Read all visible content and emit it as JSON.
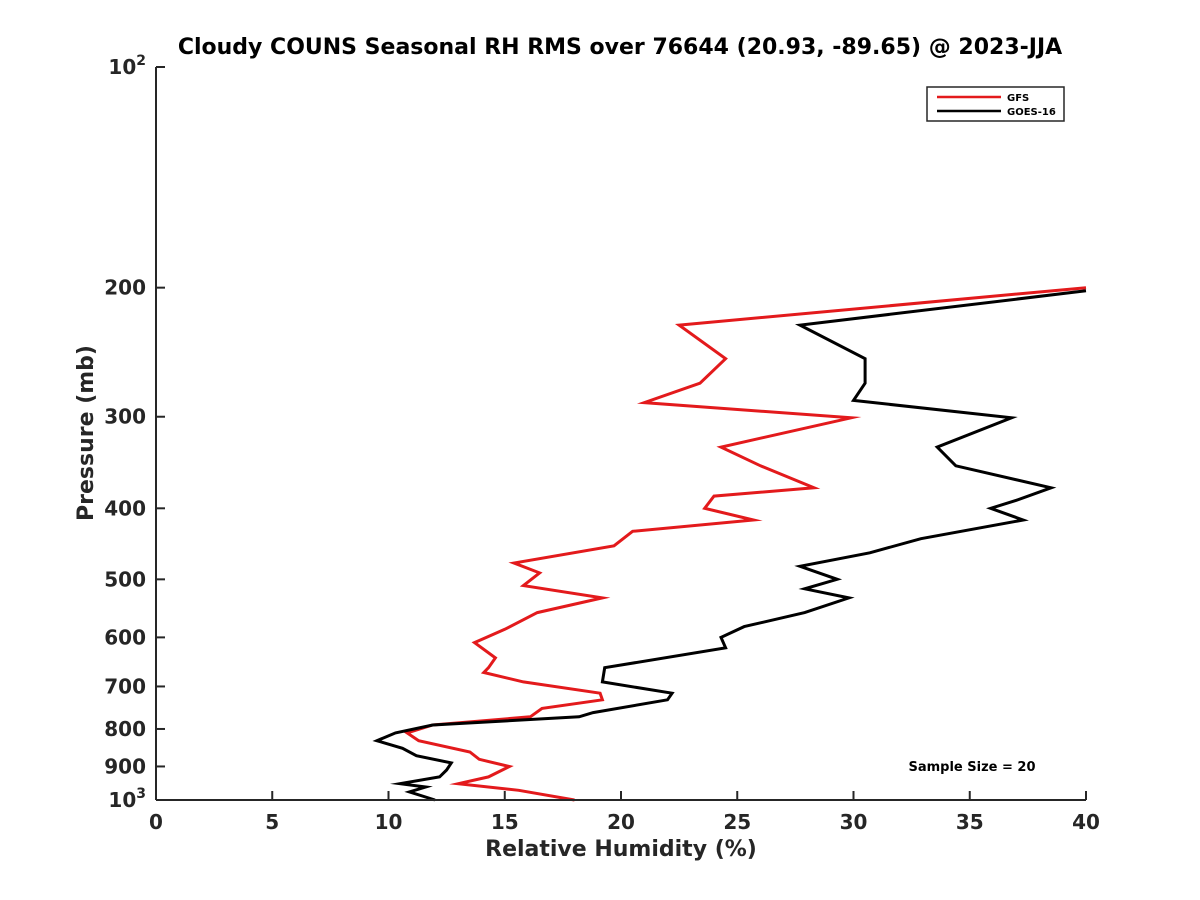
{
  "chart_data": {
    "type": "line",
    "title": "Cloudy COUNS Seasonal RH RMS over 76644 (20.93, -89.65) @ 2023-JJA",
    "xlabel": "Relative Humidity (%)",
    "ylabel": "Pressure (mb)",
    "xlim": [
      0,
      40
    ],
    "ylim": [
      100,
      1000
    ],
    "yscale": "log",
    "y_reversed": true,
    "xticks": [
      0,
      5,
      10,
      15,
      20,
      25,
      30,
      35,
      40
    ],
    "xtick_labels": [
      "0",
      "5",
      "10",
      "15",
      "20",
      "25",
      "30",
      "35",
      "40"
    ],
    "yticks": [
      100,
      200,
      300,
      400,
      500,
      600,
      700,
      800,
      900,
      1000
    ],
    "ytick_labels": [
      {
        "base": "10",
        "exp": "2"
      },
      {
        "base": "200",
        "exp": ""
      },
      {
        "base": "300",
        "exp": ""
      },
      {
        "base": "400",
        "exp": ""
      },
      {
        "base": "500",
        "exp": ""
      },
      {
        "base": "600",
        "exp": ""
      },
      {
        "base": "700",
        "exp": ""
      },
      {
        "base": "800",
        "exp": ""
      },
      {
        "base": "900",
        "exp": ""
      },
      {
        "base": "10",
        "exp": "3"
      }
    ],
    "legend": {
      "position": "top-right",
      "entries": [
        "GFS",
        "GOES-16"
      ]
    },
    "annotation": "Sample Size = 20",
    "grid": false,
    "series": [
      {
        "name": "GFS",
        "color": "#e31a1c",
        "points": [
          [
            40.0,
            200
          ],
          [
            22.5,
            225
          ],
          [
            24.5,
            250
          ],
          [
            23.4,
            270
          ],
          [
            21.0,
            287
          ],
          [
            29.9,
            301
          ],
          [
            24.3,
            330
          ],
          [
            26.0,
            350
          ],
          [
            28.3,
            375
          ],
          [
            24.0,
            385
          ],
          [
            23.6,
            400
          ],
          [
            25.7,
            415
          ],
          [
            20.5,
            430
          ],
          [
            19.7,
            450
          ],
          [
            15.4,
            475
          ],
          [
            16.5,
            490
          ],
          [
            15.8,
            510
          ],
          [
            19.2,
            530
          ],
          [
            16.4,
            555
          ],
          [
            15.0,
            585
          ],
          [
            13.7,
            610
          ],
          [
            14.6,
            640
          ],
          [
            14.3,
            660
          ],
          [
            14.1,
            670
          ],
          [
            15.8,
            690
          ],
          [
            19.1,
            715
          ],
          [
            19.2,
            730
          ],
          [
            16.6,
            750
          ],
          [
            16.1,
            770
          ],
          [
            11.9,
            790
          ],
          [
            10.8,
            810
          ],
          [
            11.3,
            830
          ],
          [
            13.5,
            860
          ],
          [
            13.9,
            880
          ],
          [
            15.2,
            900
          ],
          [
            14.3,
            930
          ],
          [
            13.0,
            950
          ],
          [
            15.6,
            970
          ],
          [
            18.0,
            1000
          ]
        ]
      },
      {
        "name": "GOES-16",
        "color": "#000000",
        "points": [
          [
            40.0,
            202
          ],
          [
            27.7,
            225
          ],
          [
            30.5,
            250
          ],
          [
            30.5,
            270
          ],
          [
            30.0,
            285
          ],
          [
            36.8,
            301
          ],
          [
            33.6,
            330
          ],
          [
            34.4,
            350
          ],
          [
            38.5,
            375
          ],
          [
            37.0,
            390
          ],
          [
            35.9,
            400
          ],
          [
            37.3,
            415
          ],
          [
            32.9,
            440
          ],
          [
            30.7,
            460
          ],
          [
            27.7,
            480
          ],
          [
            29.3,
            500
          ],
          [
            27.9,
            515
          ],
          [
            29.8,
            530
          ],
          [
            27.9,
            555
          ],
          [
            25.3,
            580
          ],
          [
            24.3,
            600
          ],
          [
            24.5,
            620
          ],
          [
            19.3,
            660
          ],
          [
            19.2,
            690
          ],
          [
            22.2,
            715
          ],
          [
            22.0,
            730
          ],
          [
            18.8,
            760
          ],
          [
            18.2,
            770
          ],
          [
            11.9,
            790
          ],
          [
            10.3,
            810
          ],
          [
            9.5,
            830
          ],
          [
            10.6,
            850
          ],
          [
            11.2,
            870
          ],
          [
            12.7,
            890
          ],
          [
            12.5,
            910
          ],
          [
            12.2,
            930
          ],
          [
            10.5,
            950
          ],
          [
            11.6,
            960
          ],
          [
            10.9,
            975
          ],
          [
            12.0,
            1000
          ]
        ]
      }
    ]
  }
}
